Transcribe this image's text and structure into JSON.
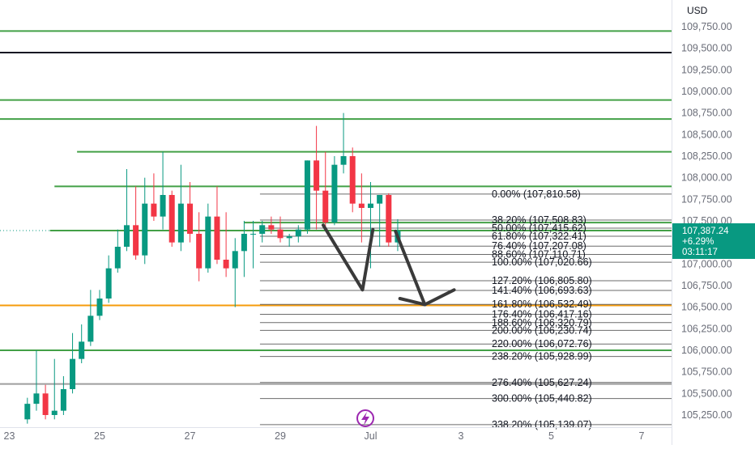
{
  "chart_data": {
    "type": "candlestick",
    "currency": "USD",
    "price_ticks": [
      109750,
      109500,
      109250,
      109000,
      108750,
      108500,
      108250,
      108000,
      107750,
      107500,
      107250,
      107000,
      106750,
      106500,
      106250,
      106000,
      105750,
      105500,
      105250
    ],
    "price_tick_labels": [
      "109,750.00",
      "109,500.00",
      "109,250.00",
      "109,000.00",
      "108,750.00",
      "108,500.00",
      "108,250.00",
      "108,000.00",
      "107,750.00",
      "107,500.00",
      "107,250.00",
      "107,000.00",
      "106,750.00",
      "106,500.00",
      "106,250.00",
      "106,000.00",
      "105,750.00",
      "105,500.00",
      "105,250.00"
    ],
    "date_ticks": [
      {
        "label": "23",
        "day": 23
      },
      {
        "label": "25",
        "day": 25
      },
      {
        "label": "27",
        "day": 27
      },
      {
        "label": "29",
        "day": 29
      },
      {
        "label": "Jul",
        "day": 31
      },
      {
        "label": "3",
        "day": 33
      },
      {
        "label": "5",
        "day": 35
      },
      {
        "label": "7",
        "day": 37
      }
    ],
    "current_price": {
      "value": 107387.24,
      "label": "107,387.24",
      "change": "+6.29%",
      "countdown": "03:11:17",
      "color": "#089981"
    },
    "horizontal_levels": [
      {
        "value": 109700,
        "color": "#43a047",
        "start_day": 22.6
      },
      {
        "value": 109450,
        "color": "#131722",
        "start_day": 22.6
      },
      {
        "value": 108900,
        "color": "#43a047",
        "start_day": 22.6
      },
      {
        "value": 108680,
        "color": "#43a047",
        "start_day": 22.6
      },
      {
        "value": 108300,
        "color": "#43a047",
        "start_day": 24.5
      },
      {
        "value": 107900,
        "color": "#43a047",
        "start_day": 24.0
      },
      {
        "value": 107480,
        "color": "#43a047",
        "start_day": 28.2
      },
      {
        "value": 107387,
        "color": "#43a047",
        "start_day": 23.9
      },
      {
        "value": 106520,
        "color": "#f59b0b",
        "start_day": 22.6
      },
      {
        "value": 106000,
        "color": "#43a047",
        "start_day": 22.6
      },
      {
        "value": 105610,
        "color": "#9e9e9e",
        "start_day": 22.6
      }
    ],
    "fib_levels": [
      {
        "label": "0.00% (107,810.58)",
        "value": 107810.58
      },
      {
        "label": "38.20% (107,508.83)",
        "value": 107508.83
      },
      {
        "label": "50.00% (107,415.62)",
        "value": 107415.62
      },
      {
        "label": "61.80% (107,322.41)",
        "value": 107322.41
      },
      {
        "label": "76.40% (107,207.08)",
        "value": 107207.08
      },
      {
        "label": "88.60% (107,110.71)",
        "value": 107110.71
      },
      {
        "label": "100.00% (107,020.66)",
        "value": 107020.66
      },
      {
        "label": "127.20% (106,805.80)",
        "value": 106805.8
      },
      {
        "label": "141.40% (106,693.63)",
        "value": 106693.63
      },
      {
        "label": "161.80% (106,532.49)",
        "value": 106532.49
      },
      {
        "label": "176.40% (106,417.16)",
        "value": 106417.16
      },
      {
        "label": "188.60% (106,320.79)",
        "value": 106320.79
      },
      {
        "label": "200.00% (106,230.74)",
        "value": 106230.74
      },
      {
        "label": "220.00% (106,072.76)",
        "value": 106072.76
      },
      {
        "label": "238.20% (105,928.99)",
        "value": 105928.99
      },
      {
        "label": "276.40% (105,627.24)",
        "value": 105627.24
      },
      {
        "label": "300.00% (105,440.82)",
        "value": 105440.82
      },
      {
        "label": "338.20% (105,139.07)",
        "value": 105139.07
      }
    ],
    "candles": [
      {
        "d": 23.4,
        "o": 105200,
        "h": 105450,
        "l": 105150,
        "c": 105380
      },
      {
        "d": 23.6,
        "o": 105380,
        "h": 106000,
        "l": 105300,
        "c": 105500
      },
      {
        "d": 23.8,
        "o": 105500,
        "h": 105600,
        "l": 105200,
        "c": 105250
      },
      {
        "d": 24.0,
        "o": 105250,
        "h": 105900,
        "l": 105200,
        "c": 105300
      },
      {
        "d": 24.2,
        "o": 105300,
        "h": 105700,
        "l": 105250,
        "c": 105550
      },
      {
        "d": 24.4,
        "o": 105550,
        "h": 106200,
        "l": 105500,
        "c": 105900
      },
      {
        "d": 24.6,
        "o": 105900,
        "h": 106300,
        "l": 105850,
        "c": 106100
      },
      {
        "d": 24.8,
        "o": 106100,
        "h": 106700,
        "l": 106050,
        "c": 106400
      },
      {
        "d": 25.0,
        "o": 106400,
        "h": 106700,
        "l": 106350,
        "c": 106600
      },
      {
        "d": 25.2,
        "o": 106600,
        "h": 107100,
        "l": 106550,
        "c": 106950
      },
      {
        "d": 25.4,
        "o": 106950,
        "h": 107400,
        "l": 106900,
        "c": 107200
      },
      {
        "d": 25.6,
        "o": 107200,
        "h": 108100,
        "l": 107150,
        "c": 107450
      },
      {
        "d": 25.8,
        "o": 107450,
        "h": 107900,
        "l": 107050,
        "c": 107100
      },
      {
        "d": 26.0,
        "o": 107100,
        "h": 108000,
        "l": 107000,
        "c": 107700
      },
      {
        "d": 26.2,
        "o": 107700,
        "h": 108050,
        "l": 107500,
        "c": 107550
      },
      {
        "d": 26.4,
        "o": 107550,
        "h": 108300,
        "l": 107400,
        "c": 107800
      },
      {
        "d": 26.6,
        "o": 107800,
        "h": 107850,
        "l": 107200,
        "c": 107250
      },
      {
        "d": 26.8,
        "o": 107250,
        "h": 108150,
        "l": 107150,
        "c": 107700
      },
      {
        "d": 27.0,
        "o": 107700,
        "h": 107950,
        "l": 107250,
        "c": 107350
      },
      {
        "d": 27.2,
        "o": 107350,
        "h": 107600,
        "l": 106800,
        "c": 106950
      },
      {
        "d": 27.4,
        "o": 106950,
        "h": 107700,
        "l": 106900,
        "c": 107550
      },
      {
        "d": 27.6,
        "o": 107550,
        "h": 107900,
        "l": 107000,
        "c": 107050
      },
      {
        "d": 27.8,
        "o": 107050,
        "h": 107600,
        "l": 106850,
        "c": 106950
      },
      {
        "d": 28.0,
        "o": 106950,
        "h": 107300,
        "l": 106500,
        "c": 107150
      },
      {
        "d": 28.2,
        "o": 107150,
        "h": 107500,
        "l": 106850,
        "c": 107350
      },
      {
        "d": 28.4,
        "o": 107350,
        "h": 107500,
        "l": 106950,
        "c": 107350
      },
      {
        "d": 28.6,
        "o": 107350,
        "h": 107500,
        "l": 107250,
        "c": 107450
      },
      {
        "d": 28.8,
        "o": 107450,
        "h": 107550,
        "l": 107350,
        "c": 107400
      },
      {
        "d": 29.0,
        "o": 107400,
        "h": 107550,
        "l": 107250,
        "c": 107300
      },
      {
        "d": 29.2,
        "o": 107300,
        "h": 107350,
        "l": 107200,
        "c": 107320
      },
      {
        "d": 29.4,
        "o": 107320,
        "h": 107450,
        "l": 107250,
        "c": 107400
      },
      {
        "d": 29.6,
        "o": 107400,
        "h": 108200,
        "l": 107350,
        "c": 108200
      },
      {
        "d": 29.8,
        "o": 108200,
        "h": 108600,
        "l": 107400,
        "c": 107850
      },
      {
        "d": 30.0,
        "o": 107850,
        "h": 108300,
        "l": 107400,
        "c": 107480
      },
      {
        "d": 30.2,
        "o": 107480,
        "h": 108250,
        "l": 107450,
        "c": 108150
      },
      {
        "d": 30.4,
        "o": 108150,
        "h": 108750,
        "l": 108050,
        "c": 108250
      },
      {
        "d": 30.6,
        "o": 108250,
        "h": 108350,
        "l": 107600,
        "c": 107700
      },
      {
        "d": 30.8,
        "o": 107700,
        "h": 108050,
        "l": 107250,
        "c": 107650
      },
      {
        "d": 31.0,
        "o": 107650,
        "h": 107950,
        "l": 106950,
        "c": 107700
      },
      {
        "d": 31.2,
        "o": 107700,
        "h": 107800,
        "l": 107200,
        "c": 107800
      },
      {
        "d": 31.4,
        "o": 107800,
        "h": 107820,
        "l": 107200,
        "c": 107250
      },
      {
        "d": 31.6,
        "o": 107250,
        "h": 107520,
        "l": 107150,
        "c": 107387
      }
    ],
    "annotation_arrows": [
      {
        "points": [
          {
            "d": 29.95,
            "p": 107450
          },
          {
            "d": 30.82,
            "p": 106700
          },
          {
            "d": 31.05,
            "p": 107400
          }
        ]
      },
      {
        "points": [
          {
            "d": 31.55,
            "p": 107380
          },
          {
            "d": 32.2,
            "p": 106530
          },
          {
            "d": 32.85,
            "p": 106700
          }
        ]
      },
      {
        "points": [
          {
            "d": 32.2,
            "p": 106530
          },
          {
            "d": 31.65,
            "p": 106600
          }
        ]
      }
    ],
    "grid": false
  }
}
